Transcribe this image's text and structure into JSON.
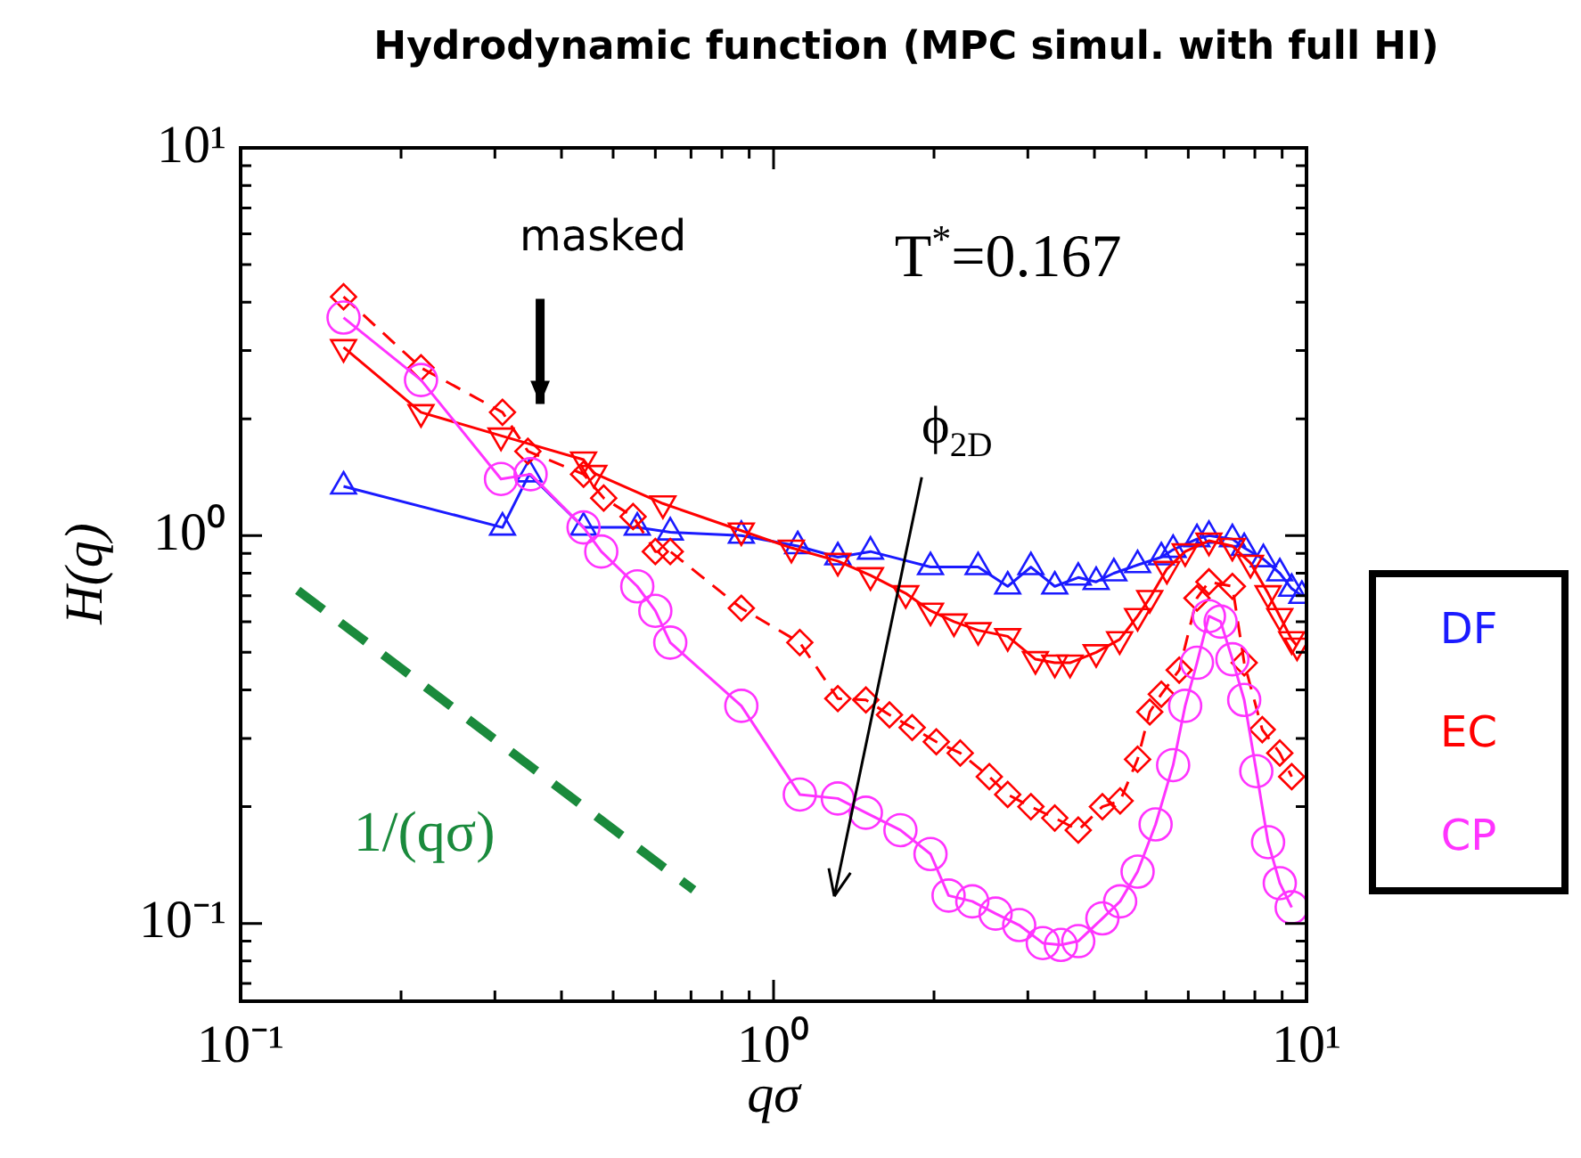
{
  "chart_data": {
    "type": "line",
    "title": "Hydrodynamic function (MPC simul. with full HI)",
    "xlabel": "qσ",
    "ylabel": "H(q)",
    "log": "xy",
    "legend": "right",
    "xlim": [
      0.1,
      10
    ],
    "ylim": [
      0.063,
      10
    ],
    "xticks": [
      {
        "value": 0.1,
        "label": "10⁻¹"
      },
      {
        "value": 0.2,
        "label": null
      },
      {
        "value": 0.3,
        "label": null
      },
      {
        "value": 0.4,
        "label": null
      },
      {
        "value": 0.5,
        "label": null
      },
      {
        "value": 0.6,
        "label": null
      },
      {
        "value": 0.7,
        "label": null
      },
      {
        "value": 0.8,
        "label": null
      },
      {
        "value": 0.9,
        "label": null
      },
      {
        "value": 1,
        "label": "10⁰"
      },
      {
        "value": 2,
        "label": null
      },
      {
        "value": 3,
        "label": null
      },
      {
        "value": 4,
        "label": null
      },
      {
        "value": 5,
        "label": null
      },
      {
        "value": 6,
        "label": null
      },
      {
        "value": 7,
        "label": null
      },
      {
        "value": 8,
        "label": null
      },
      {
        "value": 9,
        "label": null
      },
      {
        "value": 10,
        "label": "10¹"
      }
    ],
    "yticks": [
      {
        "value": 0.07,
        "label": null
      },
      {
        "value": 0.08,
        "label": null
      },
      {
        "value": 0.09,
        "label": null
      },
      {
        "value": 0.1,
        "label": "10⁻¹"
      },
      {
        "value": 0.2,
        "label": null
      },
      {
        "value": 0.3,
        "label": null
      },
      {
        "value": 0.4,
        "label": null
      },
      {
        "value": 0.5,
        "label": null
      },
      {
        "value": 0.6,
        "label": null
      },
      {
        "value": 0.7,
        "label": null
      },
      {
        "value": 0.8,
        "label": null
      },
      {
        "value": 0.9,
        "label": null
      },
      {
        "value": 1,
        "label": "10⁰"
      },
      {
        "value": 2,
        "label": null
      },
      {
        "value": 3,
        "label": null
      },
      {
        "value": 4,
        "label": null
      },
      {
        "value": 5,
        "label": null
      },
      {
        "value": 6,
        "label": null
      },
      {
        "value": 7,
        "label": null
      },
      {
        "value": 8,
        "label": null
      },
      {
        "value": 9,
        "label": null
      },
      {
        "value": 10,
        "label": "10¹"
      }
    ],
    "series": [
      {
        "name": "DF",
        "color": "#1a1aff",
        "marker": "triangle",
        "line_style": "solid",
        "x": [
          0.156,
          0.31,
          0.348,
          0.44,
          0.555,
          0.64,
          0.87,
          1.11,
          1.32,
          1.52,
          1.97,
          2.42,
          2.75,
          3.04,
          3.37,
          3.73,
          4.03,
          4.35,
          4.82,
          5.34,
          5.62,
          6.23,
          6.56,
          7.26,
          7.64,
          8.3,
          8.91,
          9.38,
          9.8
        ],
        "values": [
          1.34,
          1.05,
          1.44,
          1.05,
          1.05,
          1.02,
          1.0,
          0.94,
          0.88,
          0.91,
          0.83,
          0.83,
          0.74,
          0.83,
          0.74,
          0.78,
          0.76,
          0.8,
          0.84,
          0.88,
          0.92,
          0.98,
          1.0,
          0.98,
          0.93,
          0.87,
          0.8,
          0.73,
          0.7
        ]
      },
      {
        "name": "EC",
        "color": "#ff0000",
        "marker": "triangle-down",
        "line_style": "solid",
        "x": [
          0.156,
          0.218,
          0.308,
          0.44,
          0.46,
          0.62,
          0.87,
          1.08,
          1.32,
          1.52,
          1.77,
          1.97,
          2.18,
          2.42,
          2.75,
          3.1,
          3.37,
          3.6,
          4.03,
          4.46,
          4.82,
          5.08,
          5.47,
          5.92,
          6.56,
          7.26,
          7.85,
          8.47,
          8.91,
          9.38,
          9.6
        ],
        "values": [
          3.06,
          2.08,
          1.81,
          1.57,
          1.45,
          1.21,
          1.03,
          0.93,
          0.86,
          0.79,
          0.71,
          0.64,
          0.6,
          0.57,
          0.55,
          0.48,
          0.47,
          0.47,
          0.5,
          0.54,
          0.62,
          0.69,
          0.82,
          0.91,
          0.97,
          0.94,
          0.85,
          0.71,
          0.62,
          0.54,
          0.52
        ]
      },
      {
        "color": "#ff0000",
        "marker": "diamond",
        "line_style": "dashed",
        "x": [
          0.156,
          0.218,
          0.31,
          0.346,
          0.44,
          0.48,
          0.545,
          0.6,
          0.64,
          0.87,
          1.12,
          1.32,
          1.49,
          1.65,
          1.82,
          2.02,
          2.24,
          2.54,
          2.75,
          3.04,
          3.37,
          3.73,
          4.14,
          4.47,
          4.82,
          5.08,
          5.34,
          5.77,
          6.23,
          6.56,
          7.26,
          7.64,
          8.26,
          8.91,
          9.38
        ],
        "values": [
          4.13,
          2.71,
          2.08,
          1.65,
          1.44,
          1.25,
          1.12,
          0.91,
          0.91,
          0.65,
          0.53,
          0.38,
          0.377,
          0.345,
          0.32,
          0.294,
          0.275,
          0.239,
          0.215,
          0.2,
          0.187,
          0.174,
          0.2,
          0.207,
          0.265,
          0.351,
          0.39,
          0.45,
          0.69,
          0.76,
          0.74,
          0.47,
          0.316,
          0.275,
          0.239
        ]
      },
      {
        "name": "CP",
        "color": "#ff33ff",
        "marker": "circle",
        "line_style": "solid",
        "x": [
          0.156,
          0.218,
          0.308,
          0.35,
          0.44,
          0.475,
          0.555,
          0.6,
          0.64,
          0.87,
          1.12,
          1.32,
          1.49,
          1.73,
          1.97,
          2.13,
          2.36,
          2.61,
          2.89,
          3.2,
          3.46,
          3.73,
          4.14,
          4.47,
          4.82,
          5.21,
          5.62,
          5.92,
          6.23,
          6.56,
          6.9,
          7.26,
          7.64,
          8.05,
          8.47,
          8.91,
          9.38
        ],
        "values": [
          3.65,
          2.52,
          1.4,
          1.44,
          1.05,
          0.91,
          0.74,
          0.64,
          0.53,
          0.364,
          0.215,
          0.21,
          0.193,
          0.174,
          0.151,
          0.118,
          0.114,
          0.106,
          0.099,
          0.089,
          0.088,
          0.09,
          0.103,
          0.114,
          0.136,
          0.18,
          0.256,
          0.364,
          0.47,
          0.62,
          0.6,
          0.48,
          0.377,
          0.247,
          0.162,
          0.127,
          0.11
        ]
      },
      {
        "name": "1/(qσ)",
        "color": "#1a8a3c",
        "marker": "none",
        "line_style": "dashed",
        "x": [
          0.128,
          0.708
        ],
        "values": [
          0.723,
          0.122
        ]
      }
    ],
    "annotations": [
      "masked",
      "T$^{*}$=0.167",
      "ϕ$_{2D}$"
    ]
  }
}
